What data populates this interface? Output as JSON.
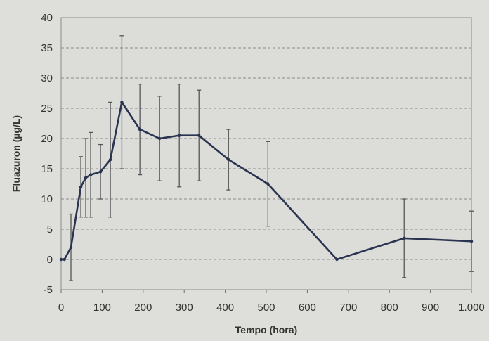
{
  "chart_data": {
    "type": "line",
    "xlabel": "Tempo (hora)",
    "ylabel": "Fluazuron (µg/L)",
    "xlim": [
      0,
      1000
    ],
    "ylim": [
      -5,
      40
    ],
    "x_ticks": [
      0,
      100,
      200,
      300,
      400,
      500,
      600,
      700,
      800,
      900,
      1000
    ],
    "x_tick_labels": [
      "0",
      "100",
      "200",
      "300",
      "400",
      "500",
      "600",
      "700",
      "800",
      "900",
      "1.000"
    ],
    "y_ticks": [
      -5,
      0,
      5,
      10,
      15,
      20,
      25,
      30,
      35,
      40
    ],
    "y_tick_labels": [
      "-5",
      "0",
      "5",
      "10",
      "15",
      "20",
      "25",
      "30",
      "35",
      "40"
    ],
    "grid": "horizontal dashed",
    "series": [
      {
        "color": "#2a3350",
        "points": [
          {
            "x": 0,
            "y": 0,
            "err": 0
          },
          {
            "x": 8,
            "y": 0,
            "err": 0
          },
          {
            "x": 24,
            "y": 2,
            "err": 5.5
          },
          {
            "x": 48,
            "y": 12,
            "err": 5
          },
          {
            "x": 60,
            "y": 13.5,
            "err": 6.5
          },
          {
            "x": 72,
            "y": 14,
            "err": 7
          },
          {
            "x": 96,
            "y": 14.5,
            "err": 4.5
          },
          {
            "x": 120,
            "y": 16.5,
            "err": 9.5
          },
          {
            "x": 148,
            "y": 26,
            "err": 11
          },
          {
            "x": 192,
            "y": 21.5,
            "err": 7.5
          },
          {
            "x": 240,
            "y": 20,
            "err": 7
          },
          {
            "x": 288,
            "y": 20.5,
            "err": 8.5
          },
          {
            "x": 336,
            "y": 20.5,
            "err": 7.5
          },
          {
            "x": 408,
            "y": 16.5,
            "err": 5
          },
          {
            "x": 504,
            "y": 12.5,
            "err": 7
          },
          {
            "x": 672,
            "y": 0,
            "err": 0
          },
          {
            "x": 836,
            "y": 3.5,
            "err": 6.5
          },
          {
            "x": 1000,
            "y": 3,
            "err": 5
          }
        ]
      }
    ]
  }
}
